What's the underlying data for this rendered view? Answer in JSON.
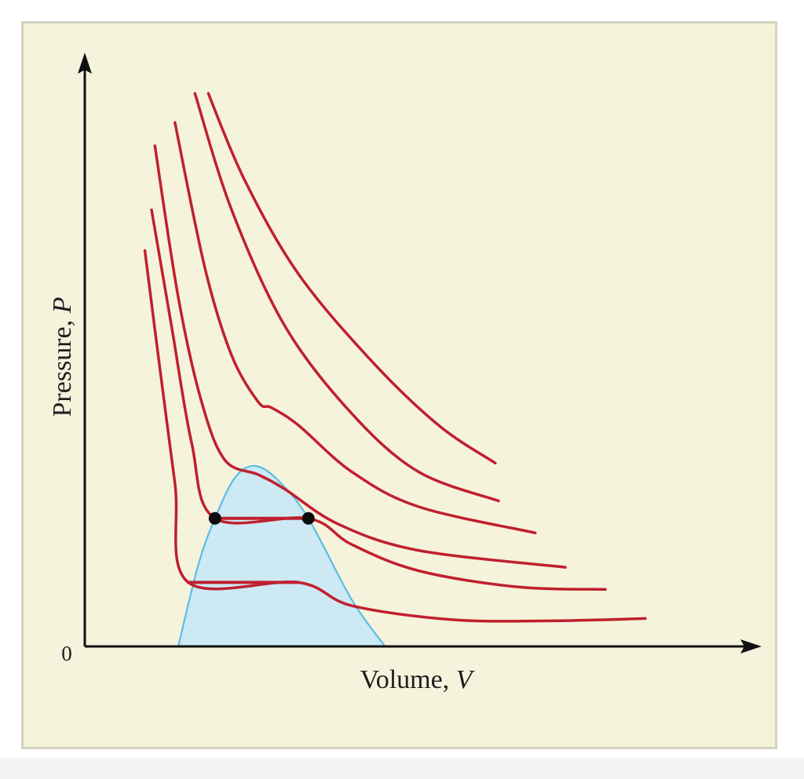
{
  "chart_data": {
    "type": "line",
    "title": "",
    "xlabel": "Volume, V",
    "ylabel": "Pressure, P",
    "x_label_parts": [
      "Volume, ",
      "V"
    ],
    "y_label_parts": [
      "Pressure, ",
      "P"
    ],
    "origin_label": "0",
    "ticks_shown": false,
    "grid": false,
    "colors": {
      "background": "#f6f3dd",
      "isotherm": "#c0202e",
      "dome_fill": "#cde9f4",
      "dome_edge": "#5bbde4",
      "axes": "#111111"
    },
    "series": [
      {
        "points": [
          [
            0.09,
            0.68
          ],
          [
            0.11,
            0.5
          ],
          [
            0.135,
            0.28
          ],
          [
            0.155,
            0.11
          ],
          [
            0.32,
            0.11
          ],
          [
            0.4,
            0.07
          ],
          [
            0.55,
            0.046
          ],
          [
            0.7,
            0.044
          ],
          [
            0.84,
            0.048
          ]
        ]
      },
      {
        "points": [
          [
            0.1,
            0.75
          ],
          [
            0.13,
            0.55
          ],
          [
            0.16,
            0.35
          ],
          [
            0.195,
            0.22
          ],
          [
            0.335,
            0.22
          ],
          [
            0.4,
            0.175
          ],
          [
            0.5,
            0.13
          ],
          [
            0.65,
            0.102
          ],
          [
            0.78,
            0.098
          ]
        ]
      },
      {
        "points": [
          [
            0.105,
            0.86
          ],
          [
            0.14,
            0.6
          ],
          [
            0.175,
            0.42
          ],
          [
            0.21,
            0.32
          ],
          [
            0.26,
            0.295
          ],
          [
            0.3,
            0.27
          ],
          [
            0.38,
            0.21
          ],
          [
            0.5,
            0.165
          ],
          [
            0.72,
            0.136
          ]
        ]
      },
      {
        "points": [
          [
            0.135,
            0.9
          ],
          [
            0.18,
            0.65
          ],
          [
            0.22,
            0.5
          ],
          [
            0.26,
            0.42
          ],
          [
            0.28,
            0.41
          ],
          [
            0.32,
            0.38
          ],
          [
            0.4,
            0.3
          ],
          [
            0.5,
            0.24
          ],
          [
            0.675,
            0.195
          ]
        ]
      },
      {
        "points": [
          [
            0.165,
            0.95
          ],
          [
            0.22,
            0.75
          ],
          [
            0.3,
            0.55
          ],
          [
            0.4,
            0.4
          ],
          [
            0.5,
            0.3
          ],
          [
            0.62,
            0.25
          ]
        ]
      },
      {
        "points": [
          [
            0.185,
            0.95
          ],
          [
            0.24,
            0.8
          ],
          [
            0.32,
            0.64
          ],
          [
            0.43,
            0.49
          ],
          [
            0.53,
            0.38
          ],
          [
            0.615,
            0.315
          ]
        ]
      }
    ],
    "coexistence_dome": [
      [
        0.14,
        0.0
      ],
      [
        0.17,
        0.14
      ],
      [
        0.195,
        0.22
      ],
      [
        0.225,
        0.29
      ],
      [
        0.255,
        0.31
      ],
      [
        0.29,
        0.285
      ],
      [
        0.335,
        0.22
      ],
      [
        0.4,
        0.08
      ],
      [
        0.45,
        0.0
      ]
    ],
    "tie_lines": [
      {
        "y": 0.22,
        "x": [
          0.195,
          0.335
        ]
      },
      {
        "y": 0.11,
        "x": [
          0.155,
          0.32
        ]
      }
    ],
    "marked_points": [
      [
        0.195,
        0.22
      ],
      [
        0.335,
        0.22
      ]
    ],
    "xlim": [
      0,
      1
    ],
    "ylim": [
      0,
      1
    ]
  }
}
